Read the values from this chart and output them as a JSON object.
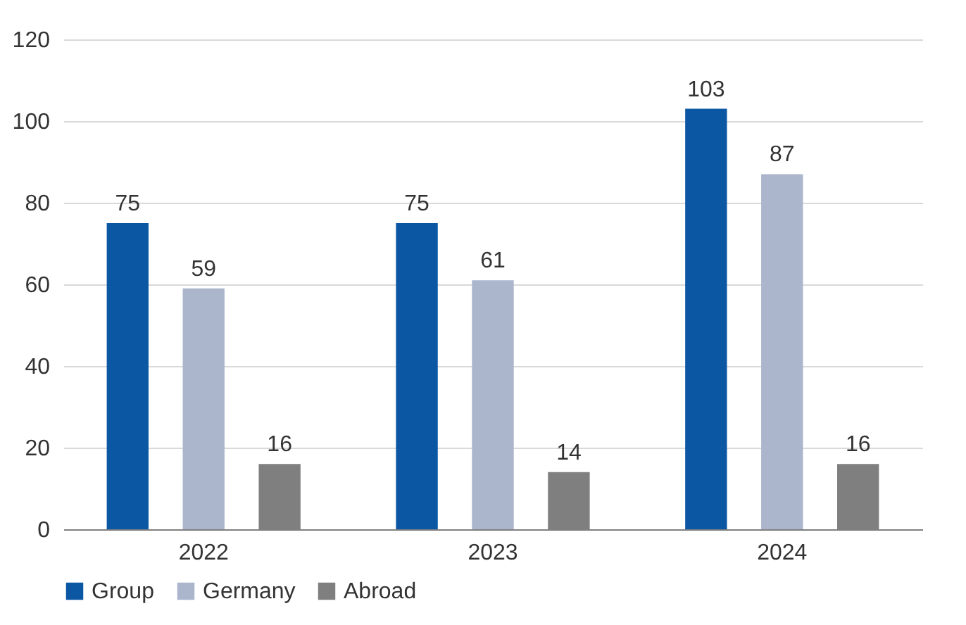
{
  "chart_data": {
    "type": "bar",
    "categories": [
      "2022",
      "2023",
      "2024"
    ],
    "series": [
      {
        "name": "Group",
        "color": "#0b57a4",
        "values": [
          75,
          75,
          103
        ]
      },
      {
        "name": "Germany",
        "color": "#abb5cc",
        "values": [
          59,
          61,
          87
        ]
      },
      {
        "name": "Abroad",
        "color": "#7f7f7f",
        "values": [
          16,
          14,
          16
        ]
      }
    ],
    "ylim": [
      0,
      120
    ],
    "yticks": [
      0,
      20,
      40,
      60,
      80,
      100,
      120
    ],
    "grid": "y",
    "legend": "bottom",
    "data_labels": true
  }
}
